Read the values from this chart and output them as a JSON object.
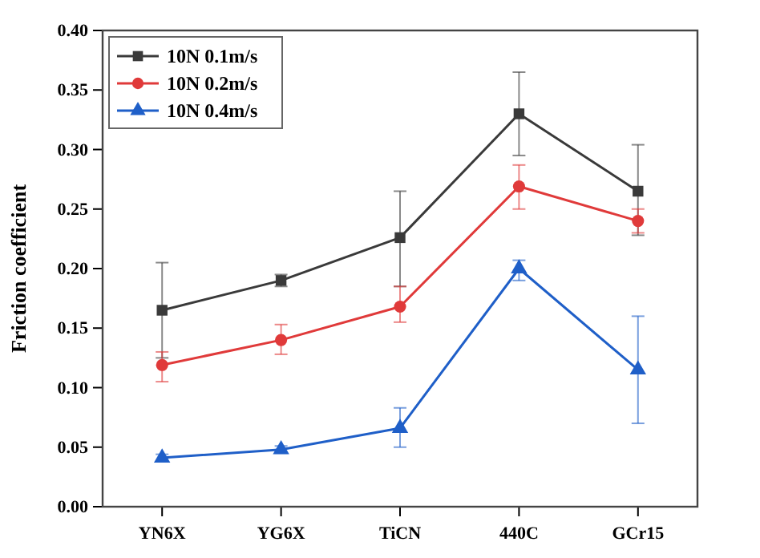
{
  "chart_data": {
    "type": "line",
    "ylabel": "Friction coefficient",
    "categories": [
      "YN6X",
      "YG6X",
      "TiCN",
      "440C",
      "GCr15"
    ],
    "ylim": [
      0,
      0.4
    ],
    "yticks": [
      {
        "value": 0,
        "label": "0.00"
      },
      {
        "value": 0.05,
        "label": "0.05"
      },
      {
        "value": 0.1,
        "label": "0.10"
      },
      {
        "value": 0.15,
        "label": "0.15"
      },
      {
        "value": 0.2,
        "label": "0.20"
      },
      {
        "value": 0.25,
        "label": "0.25"
      },
      {
        "value": 0.3,
        "label": "0.30"
      },
      {
        "value": 0.35,
        "label": "0.35"
      },
      {
        "value": 0.4,
        "label": "0.40"
      }
    ],
    "legend": "top left",
    "grid": false,
    "series": [
      {
        "name": "10N 0.1m/s",
        "color": "#3a3a3a",
        "marker": "square",
        "values": [
          0.165,
          0.19,
          0.226,
          0.33,
          0.265
        ],
        "errors": [
          [
            0.125,
            0.205
          ],
          [
            0.185,
            0.195
          ],
          [
            0.185,
            0.265
          ],
          [
            0.295,
            0.365
          ],
          [
            0.228,
            0.304
          ]
        ]
      },
      {
        "name": "10N 0.2m/s",
        "color": "#e03a3a",
        "marker": "circle",
        "values": [
          0.119,
          0.14,
          0.168,
          0.269,
          0.24
        ],
        "errors": [
          [
            0.105,
            0.13
          ],
          [
            0.128,
            0.153
          ],
          [
            0.155,
            0.185
          ],
          [
            0.25,
            0.287
          ],
          [
            0.23,
            0.25
          ]
        ]
      },
      {
        "name": "10N 0.4m/s",
        "color": "#1f5fc8",
        "marker": "triangle",
        "values": [
          0.041,
          0.048,
          0.066,
          0.2,
          0.115
        ],
        "errors": [
          [
            0.038,
            0.044
          ],
          [
            0.045,
            0.051
          ],
          [
            0.05,
            0.083
          ],
          [
            0.19,
            0.207
          ],
          [
            0.07,
            0.16
          ]
        ]
      }
    ]
  }
}
